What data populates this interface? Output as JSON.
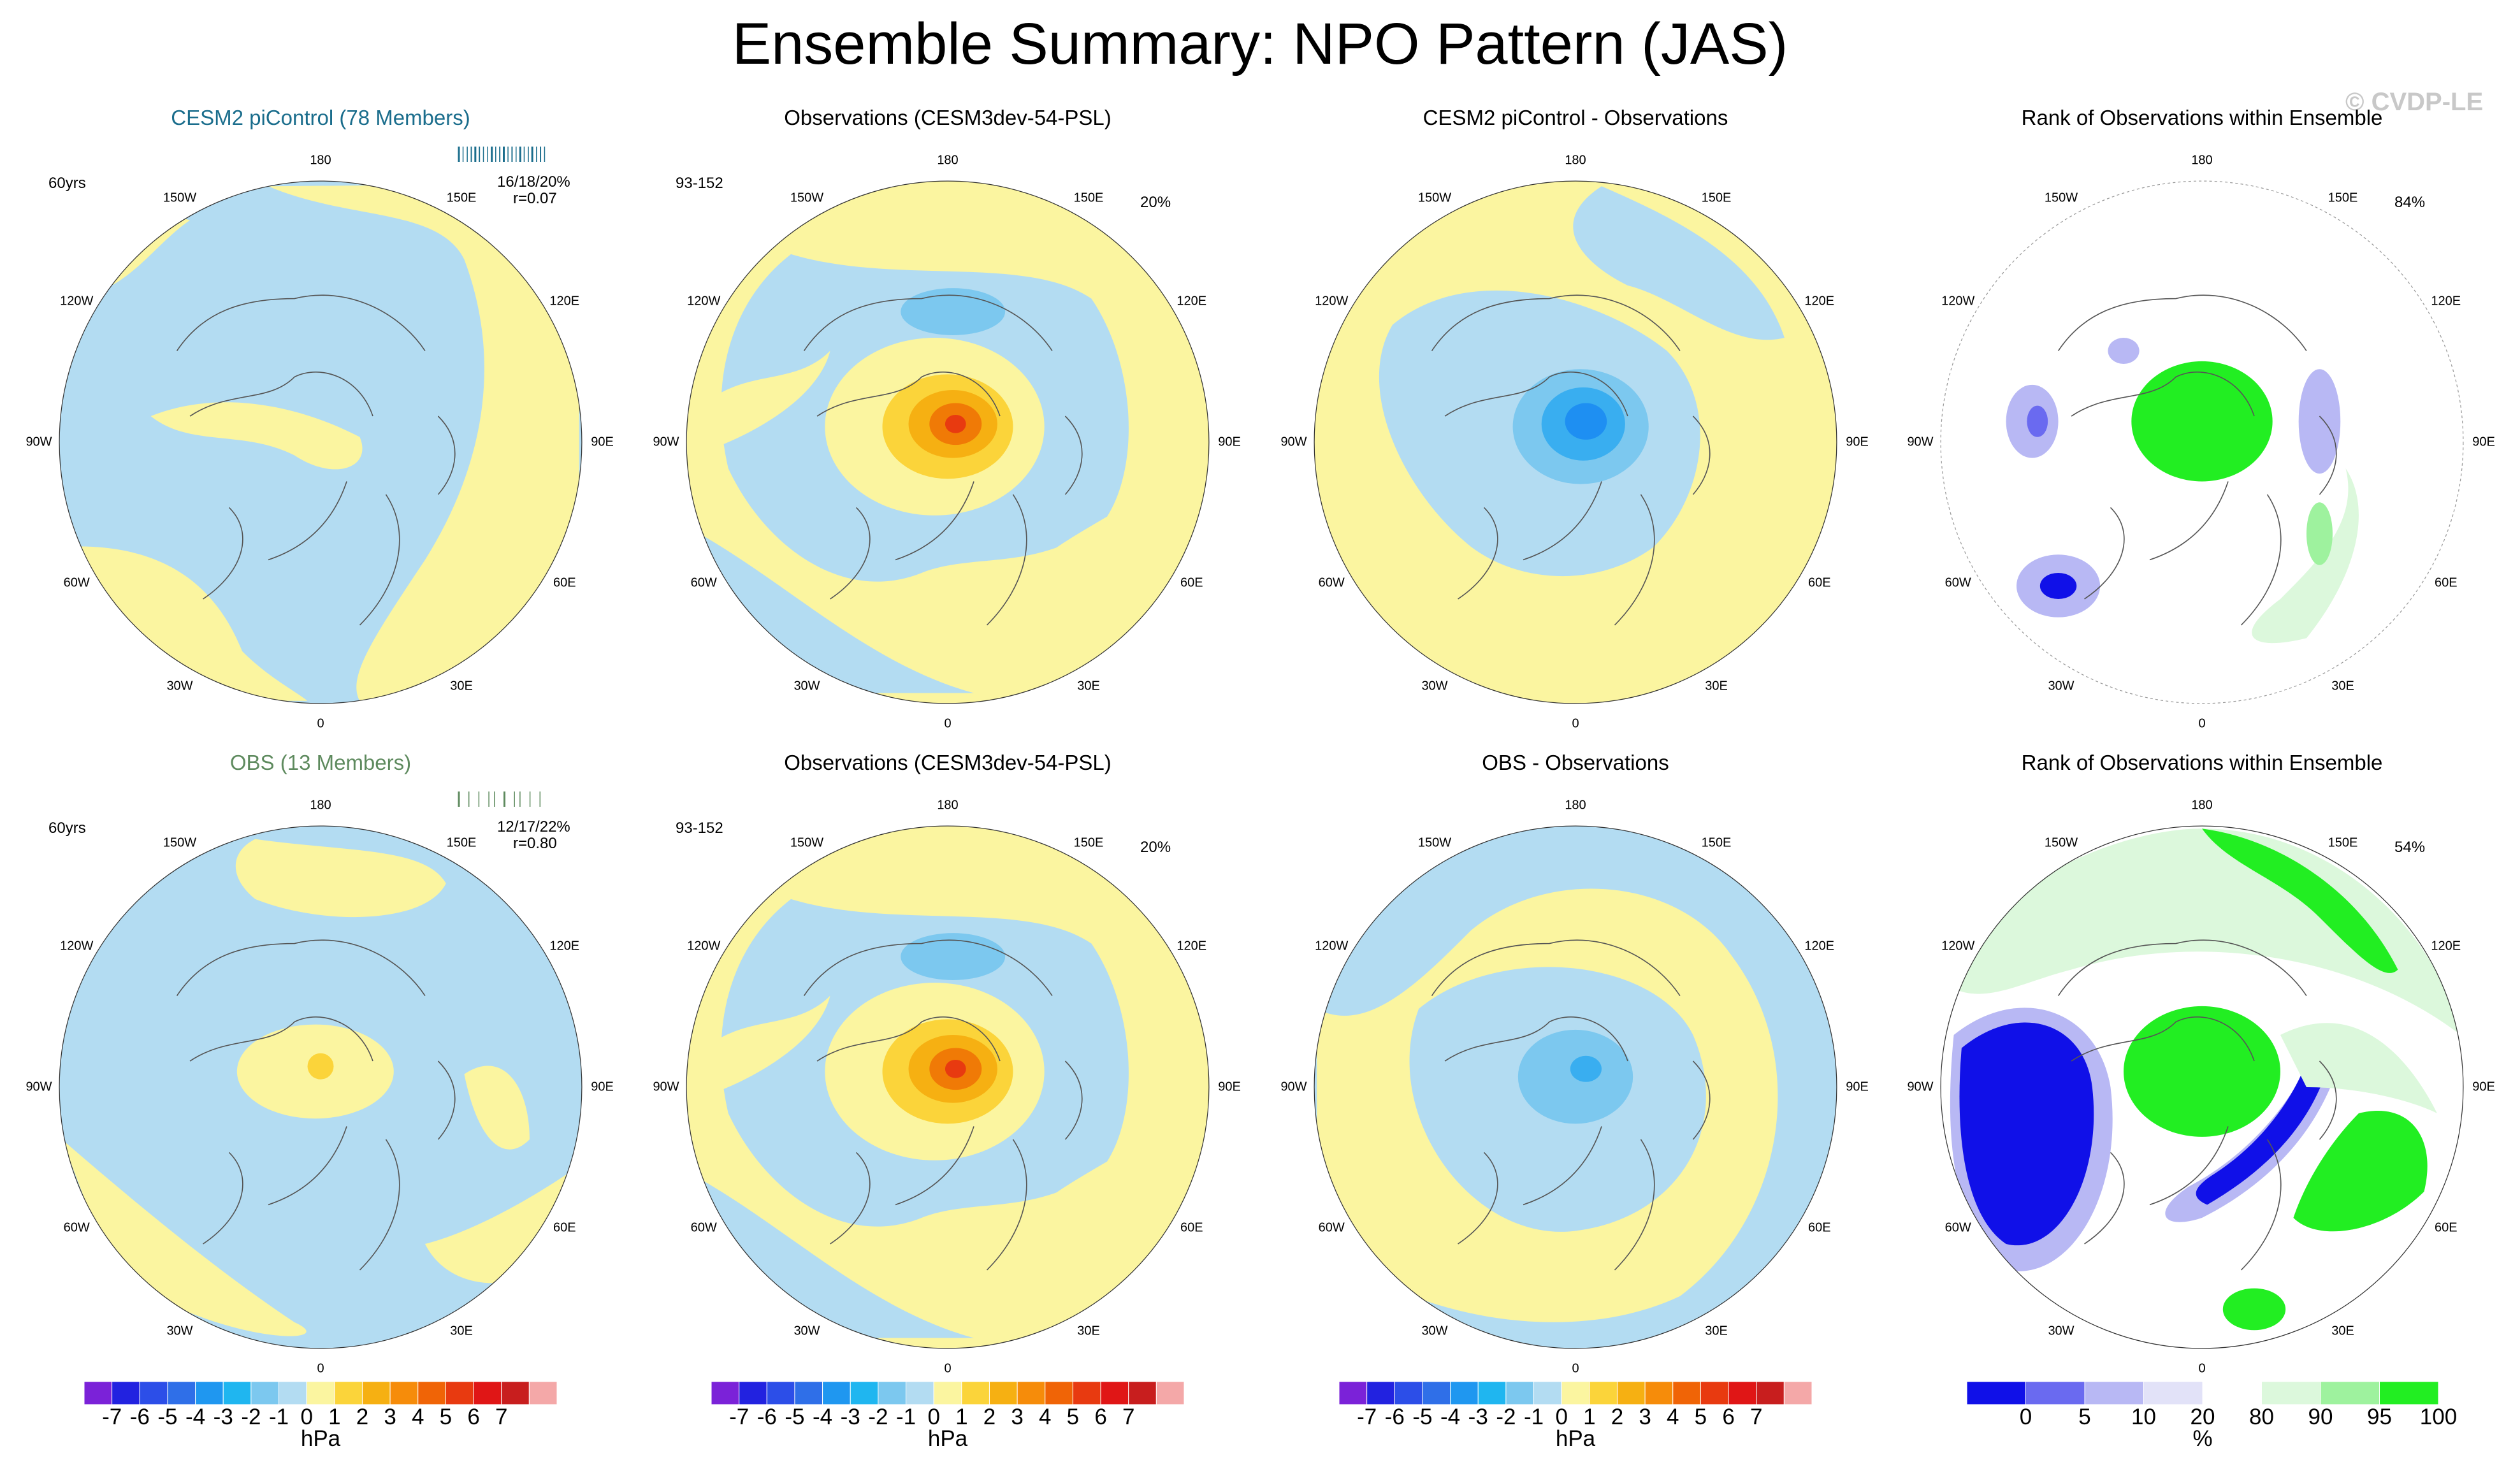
{
  "title": "Ensemble Summary: NPO Pattern (JAS)",
  "watermark": "© CVDP-LE",
  "colors": {
    "light_blue": "#b3dcf2",
    "light_yellow": "#fbf5a0",
    "blue1": "#7cc8ef",
    "blue2": "#39aef0",
    "blue3": "#1e8ff2",
    "yellow2": "#fbd43a",
    "orange1": "#f6b012",
    "orange2": "#f07a06",
    "red1": "#e83a10",
    "rank_blue": "#1010e8",
    "rank_blue2": "#6a6af0",
    "rank_blue3": "#b8b8f4",
    "rank_blue4": "#e2e2f8",
    "rank_green": "#22ee22",
    "rank_green2": "#9ef29e",
    "rank_green3": "#dcf8dc"
  },
  "longitude_labels": [
    "180",
    "150E",
    "120E",
    "90E",
    "60E",
    "30E",
    "0",
    "30W",
    "60W",
    "90W",
    "120W",
    "150W"
  ],
  "chart_data": [
    {
      "type": "heatmap",
      "title": "CESM2 piControl (78 Members)",
      "title_color": "#1a6d8c",
      "period": "60yrs",
      "stats_line1": "16/18/20%",
      "stats_line2": "r=0.07",
      "units": "hPa"
    },
    {
      "type": "heatmap",
      "title": "Observations (CESM3dev-54-PSL)",
      "period": "93-152",
      "percent": "20%",
      "units": "hPa"
    },
    {
      "type": "heatmap",
      "title": "CESM2 piControl - Observations",
      "units": "hPa"
    },
    {
      "type": "heatmap",
      "title": "Rank of Observations within Ensemble",
      "percent": "84%",
      "units": "%"
    },
    {
      "type": "heatmap",
      "title": "OBS (13 Members)",
      "title_color": "#5e8a5e",
      "period": "60yrs",
      "stats_line1": "12/17/22%",
      "stats_line2": "r=0.80",
      "units": "hPa"
    },
    {
      "type": "heatmap",
      "title": "Observations (CESM3dev-54-PSL)",
      "period": "93-152",
      "percent": "20%",
      "units": "hPa"
    },
    {
      "type": "heatmap",
      "title": "OBS - Observations",
      "units": "hPa"
    },
    {
      "type": "heatmap",
      "title": "Rank of Observations within Ensemble",
      "percent": "54%",
      "units": "%"
    }
  ],
  "colorbar_hpa": {
    "labels": [
      "-7",
      "-6",
      "-5",
      "-4",
      "-3",
      "-2",
      "-1",
      "0",
      "1",
      "2",
      "3",
      "4",
      "5",
      "6",
      "7"
    ],
    "colors": [
      "#7b22d8",
      "#2222e0",
      "#2c4ee8",
      "#2f6fe8",
      "#1f97f0",
      "#1fb6f0",
      "#7cc8ef",
      "#b3dcf2",
      "#fbf5a0",
      "#fbd43a",
      "#f6b012",
      "#f68c0a",
      "#f06406",
      "#e83a10",
      "#e01616",
      "#c81e1e",
      "#f4a8a8"
    ],
    "unit": "hPa"
  },
  "colorbar_pct": {
    "labels": [
      "0",
      "5",
      "10",
      "20",
      "80",
      "90",
      "95",
      "100"
    ],
    "colors": [
      "#1010e8",
      "#6a6af0",
      "#b8b8f4",
      "#e2e2f8",
      "#ffffff",
      "#dcf8dc",
      "#9ef29e",
      "#22ee22"
    ],
    "unit": "%"
  }
}
